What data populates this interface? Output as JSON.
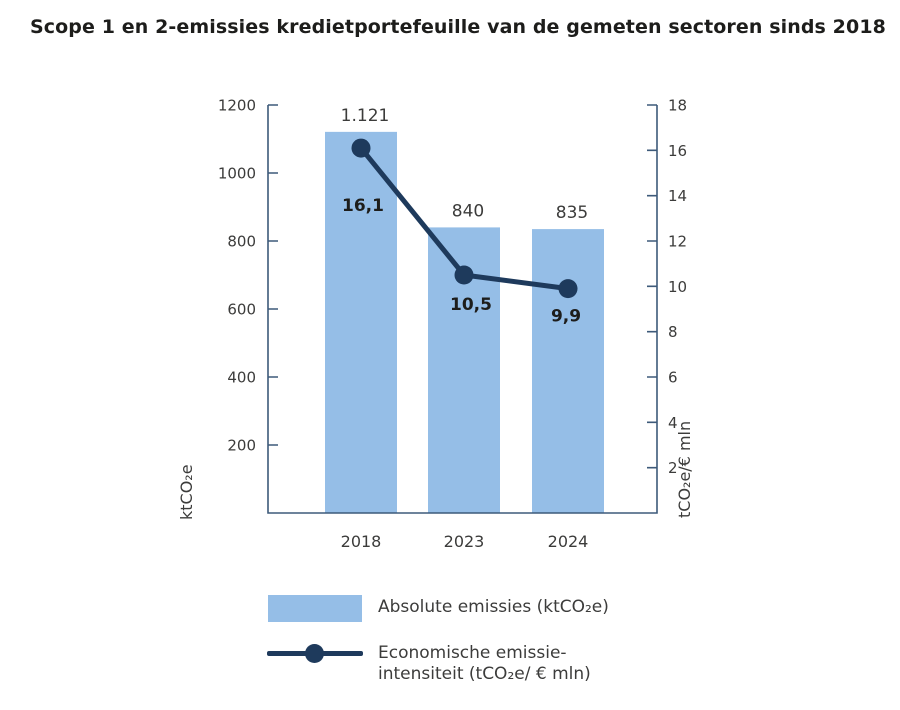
{
  "title": "Scope 1 en 2-emissies kredietportefeuille van de gemeten sectoren sinds 2018",
  "colors": {
    "bar_fill": "#95BEE7",
    "line": "#1E3A5C",
    "axis": "#3D5A7A",
    "text": "#3C3C3B",
    "title_text": "#1D1D1B",
    "background": "#FFFFFF"
  },
  "legend": {
    "bar_label": "Absolute emissies (ktCO₂e)",
    "line_label_line1": "Economische emissie-",
    "line_label_line2": "intensiteit (tCO₂e/ € mln)"
  },
  "chart_data": {
    "type": "combo",
    "title": "Scope 1 en 2-emissies kredietportefeuille van de gemeten sectoren sinds 2018",
    "categories": [
      "2018",
      "2023",
      "2024"
    ],
    "series": [
      {
        "name": "Absolute emissies (ktCO₂e)",
        "type": "bar",
        "axis": "left",
        "values": [
          1121,
          840,
          835
        ],
        "value_labels": [
          "1.121",
          "840",
          "835"
        ],
        "color": "#95BEE7"
      },
      {
        "name": "Economische emissie-intensiteit (tCO₂e/ € mln)",
        "type": "line",
        "axis": "right",
        "values": [
          16.1,
          10.5,
          9.9
        ],
        "value_labels": [
          "16,1",
          "10,5",
          "9,9"
        ],
        "color": "#1E3A5C"
      }
    ],
    "left_axis": {
      "label": "ktCO₂e",
      "min": 0,
      "max": 1200,
      "ticks": [
        200,
        400,
        600,
        800,
        1000,
        1200
      ]
    },
    "right_axis": {
      "label": "tCO₂e/€ mln",
      "min": 0,
      "max": 18,
      "ticks": [
        2,
        4,
        6,
        8,
        10,
        12,
        14,
        16,
        18
      ]
    },
    "grid": false,
    "legend_position": "bottom-left"
  }
}
